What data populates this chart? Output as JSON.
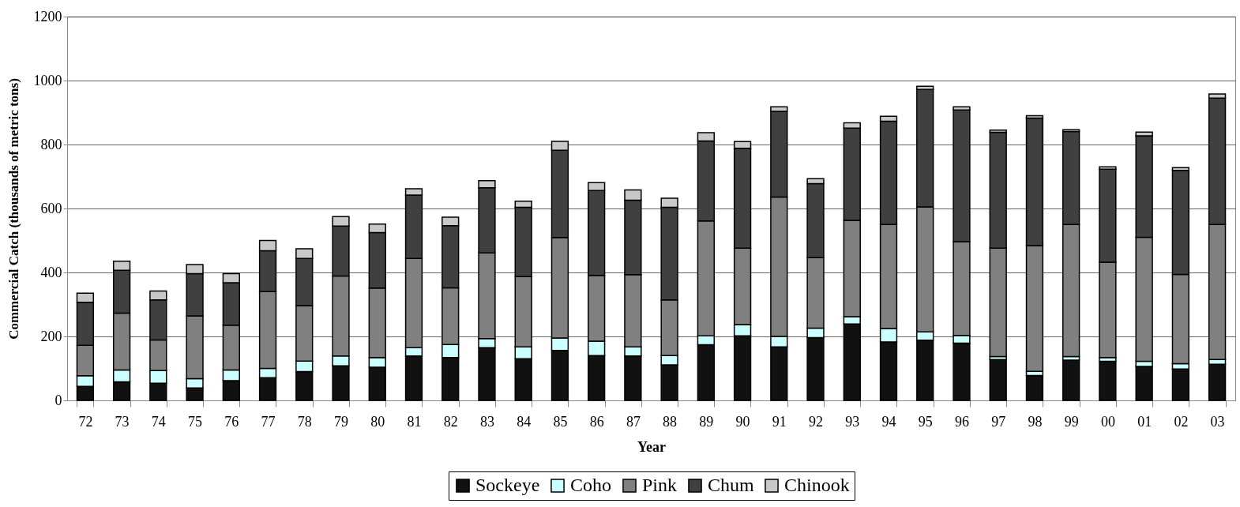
{
  "chart_data": {
    "type": "bar",
    "stacked": true,
    "xlabel": "Year",
    "ylabel": "Commercial Catch (thousands of metric tons)",
    "categories": [
      "72",
      "73",
      "74",
      "75",
      "76",
      "77",
      "78",
      "79",
      "80",
      "81",
      "82",
      "83",
      "84",
      "85",
      "86",
      "87",
      "88",
      "89",
      "90",
      "91",
      "92",
      "93",
      "94",
      "95",
      "96",
      "97",
      "98",
      "99",
      "00",
      "01",
      "02",
      "03"
    ],
    "series": [
      {
        "name": "Sockeye",
        "color": "#111111",
        "values": [
          44,
          58,
          54,
          39,
          62,
          71,
          90,
          108,
          104,
          139,
          134,
          165,
          130,
          156,
          140,
          139,
          111,
          174,
          202,
          167,
          196,
          239,
          183,
          188,
          179,
          128,
          78,
          126,
          122,
          106,
          98,
          113
        ]
      },
      {
        "name": "Coho",
        "color": "#ccffff",
        "values": [
          33,
          37,
          39,
          29,
          33,
          29,
          33,
          31,
          30,
          26,
          41,
          28,
          37,
          39,
          45,
          28,
          29,
          28,
          35,
          33,
          30,
          23,
          42,
          26,
          24,
          9,
          13,
          11,
          12,
          16,
          17,
          15
        ]
      },
      {
        "name": "Pink",
        "color": "#808080",
        "values": [
          95,
          178,
          96,
          196,
          140,
          240,
          173,
          250,
          217,
          279,
          177,
          268,
          220,
          314,
          206,
          226,
          174,
          359,
          239,
          436,
          220,
          301,
          325,
          391,
          293,
          339,
          393,
          413,
          298,
          388,
          279,
          422
        ]
      },
      {
        "name": "Chum",
        "color": "#404040",
        "values": [
          135,
          134,
          125,
          132,
          133,
          128,
          148,
          156,
          174,
          198,
          194,
          204,
          217,
          273,
          265,
          233,
          290,
          250,
          312,
          268,
          232,
          288,
          323,
          367,
          412,
          362,
          399,
          291,
          291,
          317,
          325,
          395
        ]
      },
      {
        "name": "Chinook",
        "color": "#c8c8c8",
        "values": [
          28,
          28,
          28,
          29,
          28,
          32,
          30,
          30,
          26,
          20,
          27,
          22,
          19,
          28,
          25,
          32,
          28,
          26,
          21,
          14,
          15,
          17,
          15,
          10,
          10,
          7,
          7,
          5,
          7,
          12,
          9,
          13
        ]
      }
    ],
    "ylim": [
      0,
      1200
    ],
    "yticks": [
      0,
      200,
      400,
      600,
      800,
      1000,
      1200
    ],
    "grid": "y",
    "legend": "bottom"
  }
}
